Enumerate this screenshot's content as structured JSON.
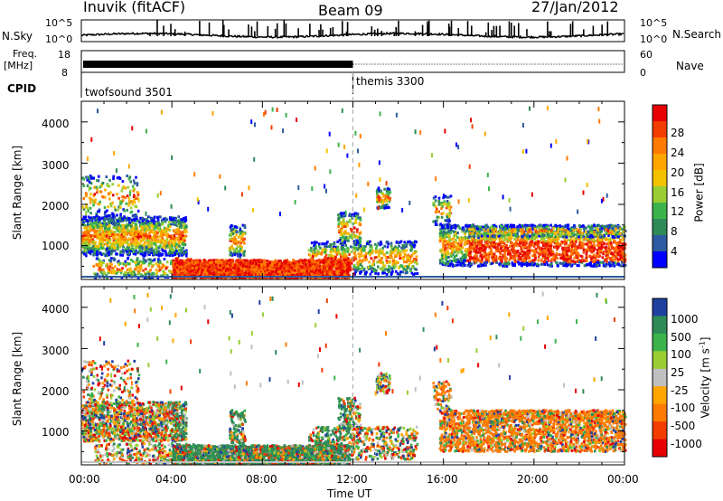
{
  "header": {
    "station": "Inuvik (fitACF)",
    "beam": "Beam 09",
    "date": "27/Jan/2012"
  },
  "top_strip": {
    "nsky_label": "N.Sky",
    "nsky_top": "10^5",
    "nsky_bottom": "10^0",
    "nsearch_top": "10^5",
    "nsearch_bottom": "10^0",
    "nsearch_label": "N.Search",
    "freq_label": "Freq.",
    "freq_unit": "[MHz]",
    "freq_top": "18",
    "freq_bottom": "8",
    "nave_top": "60",
    "nave_bottom": "0",
    "nave_label": "Nave",
    "cpid_label": "CPID",
    "cpid_1": "twofsound 3501",
    "cpid_2": "themis 3300"
  },
  "colorbar_power": {
    "label": "Power [dB]",
    "ticks": [
      "28",
      "24",
      "20",
      "16",
      "12",
      "8",
      "4"
    ],
    "colors": [
      "#e60000",
      "#f23c00",
      "#ff7a00",
      "#ffa500",
      "#f2c200",
      "#9acd32",
      "#3cb44b",
      "#2e8b57",
      "#2d5aa0",
      "#0000ff"
    ]
  },
  "colorbar_velocity": {
    "label": "Velocity [m s-1]",
    "ticks": [
      "1000",
      "500",
      "100",
      "25",
      "-25",
      "-100",
      "-500",
      "-1000"
    ],
    "colors": [
      "#2040a0",
      "#2e8b57",
      "#3cb44b",
      "#9acd32",
      "#c0c0c0",
      "#ffa500",
      "#ff7a00",
      "#f23c00",
      "#e60000"
    ]
  },
  "chart_data": [
    {
      "type": "heatmap",
      "title": "Power",
      "ylabel": "Slant Range [km]",
      "ylim": [
        180,
        4500
      ],
      "yticks": [
        "4000",
        "3000",
        "2000",
        "1000"
      ],
      "xlim": [
        "00:00",
        "00:00"
      ],
      "colorbar_label": "Power [dB]",
      "scatter_bands": [
        {
          "x": [
            0,
            4.5
          ],
          "y": [
            800,
            1700
          ]
        },
        {
          "x": [
            4.5,
            11.5
          ],
          "y": [
            300,
            700
          ]
        },
        {
          "x": [
            12,
            15
          ],
          "y": [
            300,
            1100
          ]
        },
        {
          "x": [
            17,
            24
          ],
          "y": [
            500,
            1500
          ]
        }
      ]
    },
    {
      "type": "heatmap",
      "title": "Velocity",
      "ylabel": "Slant Range [km]",
      "ylim": [
        180,
        4500
      ],
      "yticks": [
        "4000",
        "3000",
        "2000",
        "1000"
      ],
      "xlabel": "Time UT",
      "xticks": [
        "00:00",
        "04:00",
        "08:00",
        "12:00",
        "16:00",
        "20:00",
        "00:00"
      ],
      "colorbar_label": "Velocity [m s-1]"
    }
  ]
}
